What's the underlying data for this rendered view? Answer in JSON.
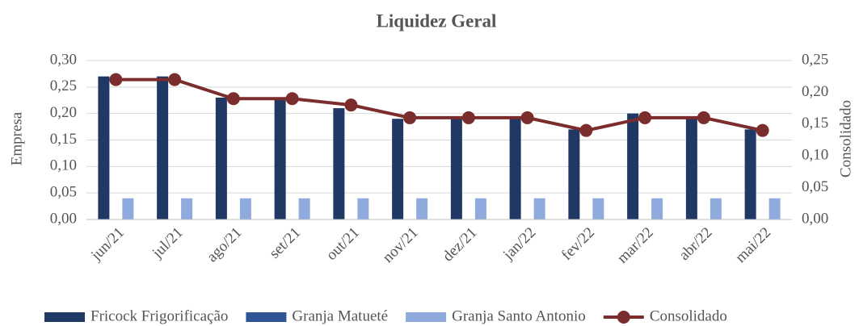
{
  "chart_data": {
    "type": "bar",
    "title": "Liquidez Geral",
    "categories": [
      "jun/21",
      "jul/21",
      "ago/21",
      "set/21",
      "out/21",
      "nov/21",
      "dez/21",
      "jan/22",
      "fev/22",
      "mar/22",
      "abr/22",
      "mai/22"
    ],
    "y_label": "Empresa",
    "y2_label": "Consolidado",
    "ylim": [
      0,
      0.3
    ],
    "yticks": [
      {
        "value": 0,
        "label": "0,00"
      },
      {
        "value": 0.05,
        "label": "0,05"
      },
      {
        "value": 0.1,
        "label": "0,10"
      },
      {
        "value": 0.15,
        "label": "0,15"
      },
      {
        "value": 0.2,
        "label": "0,20"
      },
      {
        "value": 0.25,
        "label": "0,25"
      },
      {
        "value": 0.3,
        "label": "0,30"
      }
    ],
    "y2lim": [
      0,
      0.25
    ],
    "y2ticks": [
      {
        "value": 0,
        "label": "0,00"
      },
      {
        "value": 0.05,
        "label": "0,05"
      },
      {
        "value": 0.1,
        "label": "0,10"
      },
      {
        "value": 0.15,
        "label": "0,15"
      },
      {
        "value": 0.2,
        "label": "0,20"
      },
      {
        "value": 0.25,
        "label": "0,25"
      }
    ],
    "grid": true,
    "legend": "bottom",
    "series": [
      {
        "name": "Fricock Frigorificação",
        "type": "bar",
        "color": "#1f3864",
        "values": [
          0.27,
          0.27,
          0.23,
          0.23,
          0.21,
          0.19,
          0.19,
          0.19,
          0.17,
          0.2,
          0.19,
          0.17
        ]
      },
      {
        "name": "Granja Matueté",
        "type": "bar",
        "color": "#2f5597",
        "values": [
          0,
          0,
          0,
          0,
          0,
          0,
          0,
          0,
          0,
          0,
          0,
          0
        ]
      },
      {
        "name": "Granja Santo Antonio",
        "type": "bar",
        "color": "#8faadc",
        "values": [
          0.04,
          0.04,
          0.04,
          0.04,
          0.04,
          0.04,
          0.04,
          0.04,
          0.04,
          0.04,
          0.04,
          0.04
        ]
      },
      {
        "name": "Consolidado",
        "type": "line",
        "axis": "y2",
        "color": "#7b2c2c",
        "values": [
          0.22,
          0.22,
          0.19,
          0.19,
          0.18,
          0.16,
          0.16,
          0.16,
          0.14,
          0.16,
          0.16,
          0.14
        ]
      }
    ]
  }
}
